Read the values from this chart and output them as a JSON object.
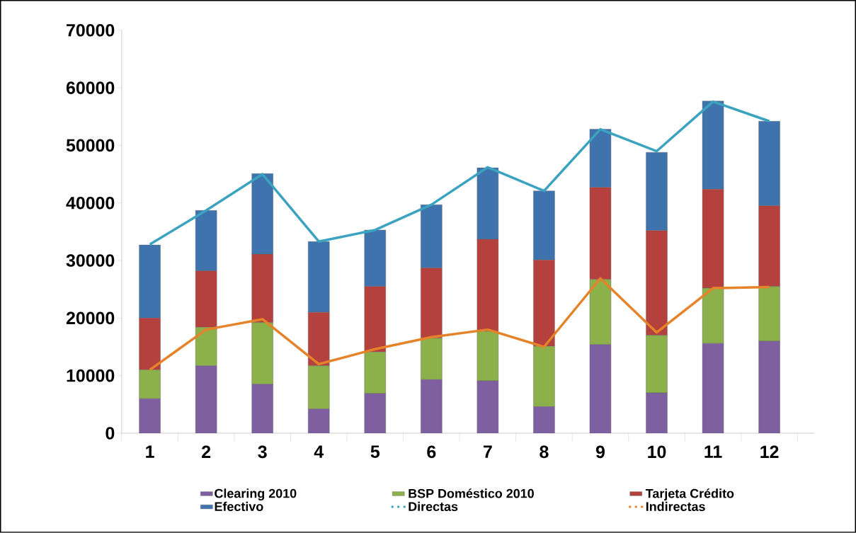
{
  "chart_data": {
    "type": "bar",
    "stacked": true,
    "legend": "bottom",
    "categories": [
      "1",
      "2",
      "3",
      "4",
      "5",
      "6",
      "7",
      "8",
      "9",
      "10",
      "11",
      "12"
    ],
    "ylim": [
      0,
      70000
    ],
    "yticks": [
      0,
      10000,
      20000,
      30000,
      40000,
      50000,
      60000,
      70000
    ],
    "series": [
      {
        "name": "Clearing 2010",
        "color": "#7e5fa0",
        "values": [
          6000,
          11700,
          8500,
          4200,
          6900,
          9300,
          9100,
          4600,
          15400,
          7000,
          15600,
          16000
        ]
      },
      {
        "name": "BSP Doméstico 2010",
        "color": "#8cb04a",
        "values": [
          5000,
          6700,
          10700,
          7500,
          7200,
          7200,
          8600,
          10500,
          11300,
          10000,
          9600,
          9500
        ]
      },
      {
        "name": "Tarjeta Crédito",
        "color": "#b5413e",
        "values": [
          9000,
          9800,
          11900,
          9300,
          11400,
          12200,
          16000,
          15000,
          16000,
          18200,
          17200,
          14000
        ]
      },
      {
        "name": "Efectivo",
        "color": "#3f73ae",
        "values": [
          12700,
          10500,
          14000,
          12300,
          9800,
          11000,
          12400,
          12000,
          10100,
          13600,
          15300,
          14700
        ]
      },
      {
        "name": "Directas",
        "type": "line",
        "color": "#3ba3c0",
        "values": [
          32800,
          38700,
          45000,
          33300,
          35300,
          39700,
          46200,
          42100,
          52800,
          49000,
          57600,
          54200
        ]
      },
      {
        "name": "Indirectas",
        "type": "line",
        "color": "#e5832a",
        "values": [
          11000,
          18000,
          19800,
          12000,
          14600,
          16700,
          18000,
          15000,
          26900,
          17500,
          25200,
          25400
        ]
      }
    ]
  }
}
